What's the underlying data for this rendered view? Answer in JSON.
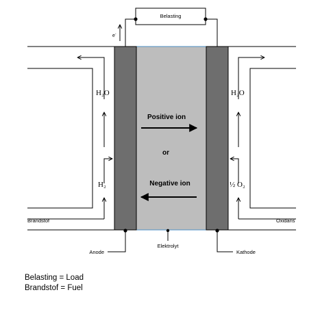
{
  "diagram": {
    "load_label": "Belasting",
    "electron_label": "e",
    "electron_sup": "-",
    "left_top_label": "H₂O",
    "left_bottom_label": "H₂",
    "right_top_label": "H₂O",
    "right_bottom_label": "½ O₂",
    "positive_ion_label": "Positive ion",
    "or_label": "or",
    "negative_ion_label": "Negative ion",
    "fuel_label": "Brandstof",
    "oxidant_label": "Oxidans",
    "anode_label": "Anode",
    "electrolyte_label": "Elektrolyt",
    "cathode_label": "Kathode"
  },
  "colors": {
    "electrode": "#6e6e6e",
    "electrolyte": "#bdbdbd",
    "electrolyte_border": "#4d8fc4",
    "line": "#000000"
  },
  "legend": {
    "line1": "Belasting = Load",
    "line2": "Brandstof = Fuel"
  }
}
